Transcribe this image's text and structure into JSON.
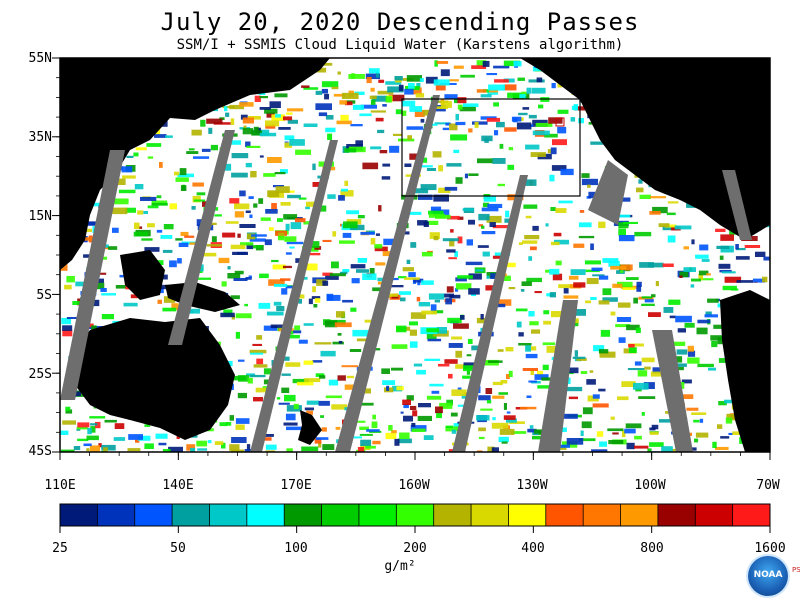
{
  "header": {
    "title": "July 20, 2020  Descending Passes",
    "subtitle": "SSM/I + SSMIS Cloud Liquid Water (Karstens algorithm)"
  },
  "axes": {
    "lat_labels": [
      "55N",
      "35N",
      "15N",
      "5S",
      "25S",
      "45S"
    ],
    "lon_labels": [
      "110E",
      "140E",
      "170E",
      "160W",
      "130W",
      "100W",
      "70W"
    ]
  },
  "colorbar": {
    "labels": [
      "25",
      "50",
      "100",
      "200",
      "400",
      "800",
      "1600"
    ],
    "units": "g/m²",
    "colors": [
      "#001a7a",
      "#0033bb",
      "#0055ff",
      "#00a0a0",
      "#00c8c8",
      "#00ffff",
      "#009900",
      "#00cc00",
      "#00ee00",
      "#33ff00",
      "#b3b300",
      "#d9d900",
      "#ffff00",
      "#ff5500",
      "#ff7700",
      "#ff9900",
      "#990000",
      "#cc0000",
      "#ff1a1a"
    ]
  },
  "map": {
    "land_color": "#000000",
    "swath_gap_color": "#6e6e6e",
    "ocean_clear_color": "#ffffff"
  },
  "logo": {
    "text": "NOAA",
    "side_text": "PSL"
  }
}
